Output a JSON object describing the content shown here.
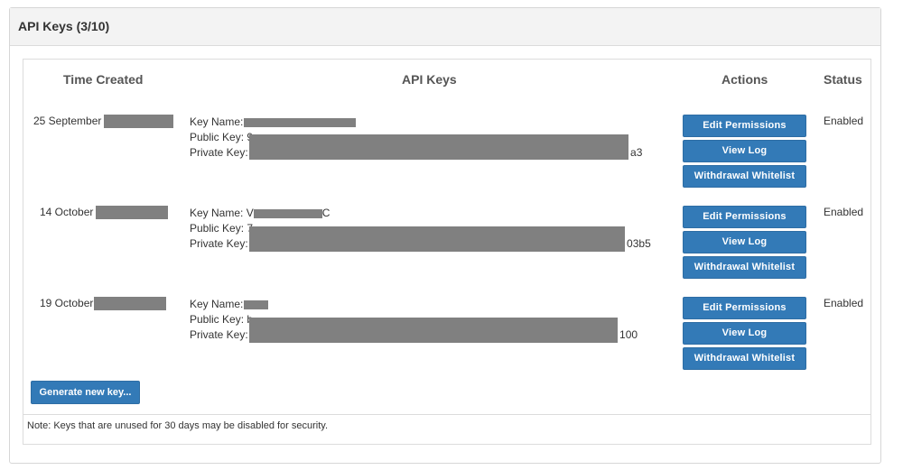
{
  "panel": {
    "title": "API Keys (3/10)"
  },
  "table": {
    "headers": {
      "time": "Time Created",
      "keys": "API Keys",
      "actions": "Actions",
      "status": "Status"
    },
    "labels": {
      "key_name": "Key Name:",
      "public_key": "Public Key:",
      "private_key": "Private Key:"
    },
    "buttons": {
      "edit": "Edit Permissions",
      "log": "View Log",
      "whitelist": "Withdrawal Whitelist"
    },
    "rows": [
      {
        "date": "25 September",
        "key_name_prefix": "",
        "key_name_suffix": "",
        "public_prefix": "9",
        "private_suffix": "a3",
        "status": "Enabled"
      },
      {
        "date": "14 October",
        "key_name_prefix": "V",
        "key_name_suffix": "C",
        "public_prefix": "7",
        "private_suffix": "03b5",
        "status": "Enabled"
      },
      {
        "date": "19 October",
        "key_name_prefix": "",
        "key_name_suffix": "",
        "public_prefix": "b",
        "private_suffix": "100",
        "status": "Enabled"
      }
    ]
  },
  "generate_button": "Generate new key...",
  "note": "Note: Keys that are unused for 30 days may be disabled for security.",
  "colors": {
    "primary": "#337ab7",
    "redaction": "#808080",
    "heading_bg": "#f3f3f3"
  }
}
